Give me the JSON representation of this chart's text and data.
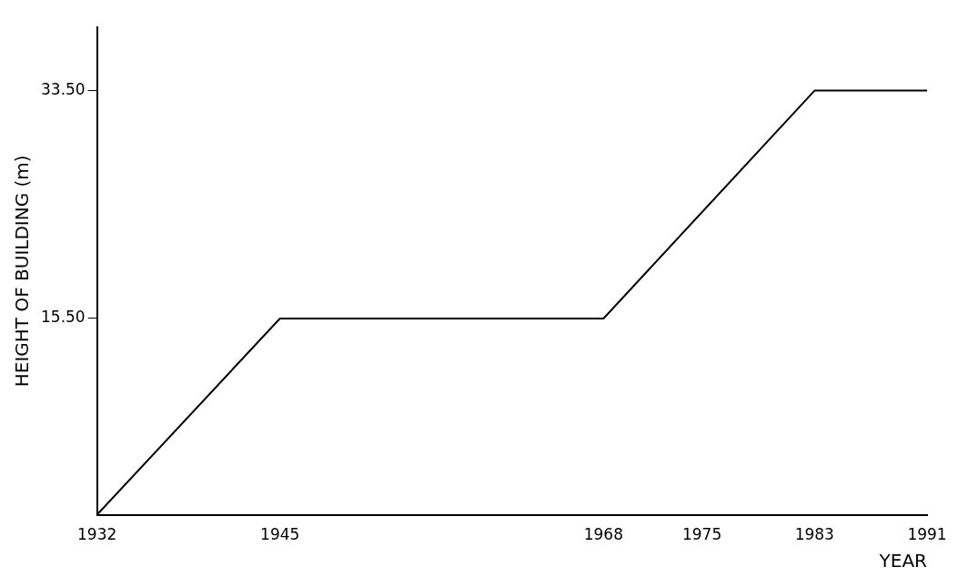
{
  "chart_data": {
    "type": "line",
    "xlabel": "YEAR",
    "ylabel": "HEIGHT OF BUILDING (m)",
    "x": [
      1932,
      1945,
      1968,
      1983,
      1991
    ],
    "series": [
      {
        "color": "#000000",
        "values": [
          0,
          15.5,
          15.5,
          33.5,
          33.5
        ]
      }
    ],
    "xlim": [
      1932,
      1991
    ],
    "xticks": [
      1932,
      1945,
      1968,
      1975,
      1983,
      1991
    ],
    "ylim": [
      0,
      38.5
    ],
    "yticks": [
      {
        "value": 15.5,
        "label": "15.50"
      },
      {
        "value": 33.5,
        "label": "33.50"
      }
    ],
    "grid": false,
    "legend": false,
    "marker": "none",
    "line_style": "solid"
  }
}
